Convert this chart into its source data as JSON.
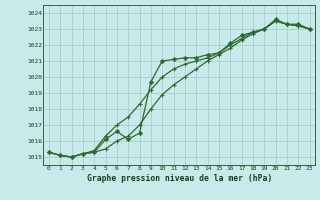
{
  "xlabel": "Graphe pression niveau de la mer (hPa)",
  "x_ticks": [
    0,
    1,
    2,
    3,
    4,
    5,
    6,
    7,
    8,
    9,
    10,
    11,
    12,
    13,
    14,
    15,
    16,
    17,
    18,
    19,
    20,
    21,
    22,
    23
  ],
  "y_ticks": [
    1015,
    1016,
    1017,
    1018,
    1019,
    1020,
    1021,
    1022,
    1023,
    1024
  ],
  "ylim": [
    1014.5,
    1024.5
  ],
  "xlim": [
    -0.5,
    23.5
  ],
  "bg_color": "#c9eaea",
  "line_color": "#2d6a2d",
  "grid_color": "#a0c8c8",
  "series1_x": [
    0,
    1,
    2,
    3,
    4,
    5,
    6,
    7,
    8,
    9,
    10,
    11,
    12,
    13,
    14,
    15,
    16,
    17,
    18,
    19,
    20,
    21,
    22,
    23
  ],
  "series1_y": [
    1015.3,
    1015.1,
    1015.0,
    1015.2,
    1015.3,
    1016.1,
    1016.6,
    1016.1,
    1016.5,
    1019.7,
    1021.0,
    1021.1,
    1021.2,
    1021.2,
    1021.4,
    1021.5,
    1022.1,
    1022.6,
    1022.8,
    1023.0,
    1023.6,
    1023.3,
    1023.3,
    1023.0
  ],
  "series2_x": [
    0,
    1,
    2,
    3,
    4,
    5,
    6,
    7,
    8,
    9,
    10,
    11,
    12,
    13,
    14,
    15,
    16,
    17,
    18,
    19,
    20,
    21,
    22,
    23
  ],
  "series2_y": [
    1015.3,
    1015.1,
    1015.0,
    1015.2,
    1015.3,
    1015.5,
    1016.0,
    1016.3,
    1017.0,
    1018.0,
    1018.9,
    1019.5,
    1020.0,
    1020.5,
    1021.0,
    1021.4,
    1021.8,
    1022.3,
    1022.7,
    1023.0,
    1023.5,
    1023.3,
    1023.2,
    1023.0
  ],
  "series3_x": [
    0,
    1,
    2,
    3,
    4,
    5,
    6,
    7,
    8,
    9,
    10,
    11,
    12,
    13,
    14,
    15,
    16,
    17,
    18,
    19,
    20,
    21,
    22,
    23
  ],
  "series3_y": [
    1015.3,
    1015.1,
    1015.0,
    1015.2,
    1015.4,
    1016.3,
    1017.0,
    1017.5,
    1018.3,
    1019.2,
    1020.0,
    1020.5,
    1020.8,
    1021.0,
    1021.2,
    1021.5,
    1022.0,
    1022.4,
    1022.8,
    1023.0,
    1023.5,
    1023.3,
    1023.2,
    1023.0
  ]
}
